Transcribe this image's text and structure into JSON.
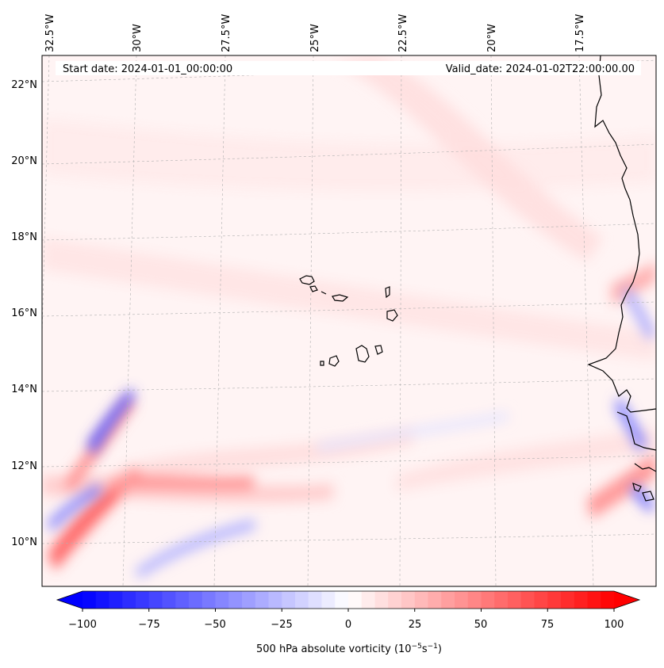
{
  "map": {
    "lon_labels": [
      "32.5°W",
      "30°W",
      "27.5°W",
      "25°W",
      "22.5°W",
      "20°W",
      "17.5°W"
    ],
    "lat_labels": [
      "22°N",
      "20°N",
      "18°N",
      "16°N",
      "14°N",
      "12°N",
      "10°N"
    ],
    "start_date": "Start date: 2024-01-01_00:00:00",
    "valid_date": "Valid_date: 2024-01-02T22:00:00.00"
  },
  "colorbar": {
    "tick_labels": [
      "−100",
      "−75",
      "−50",
      "−25",
      "0",
      "25",
      "50",
      "75",
      "100"
    ],
    "label_main": "500 hPa absolute vorticity (10",
    "exp1": "−5",
    "label_mid": "s",
    "exp2": "−1",
    "label_end": ")",
    "min": -100,
    "max": 100,
    "neg_color": "#0000ff",
    "pos_color": "#ff0000"
  }
}
